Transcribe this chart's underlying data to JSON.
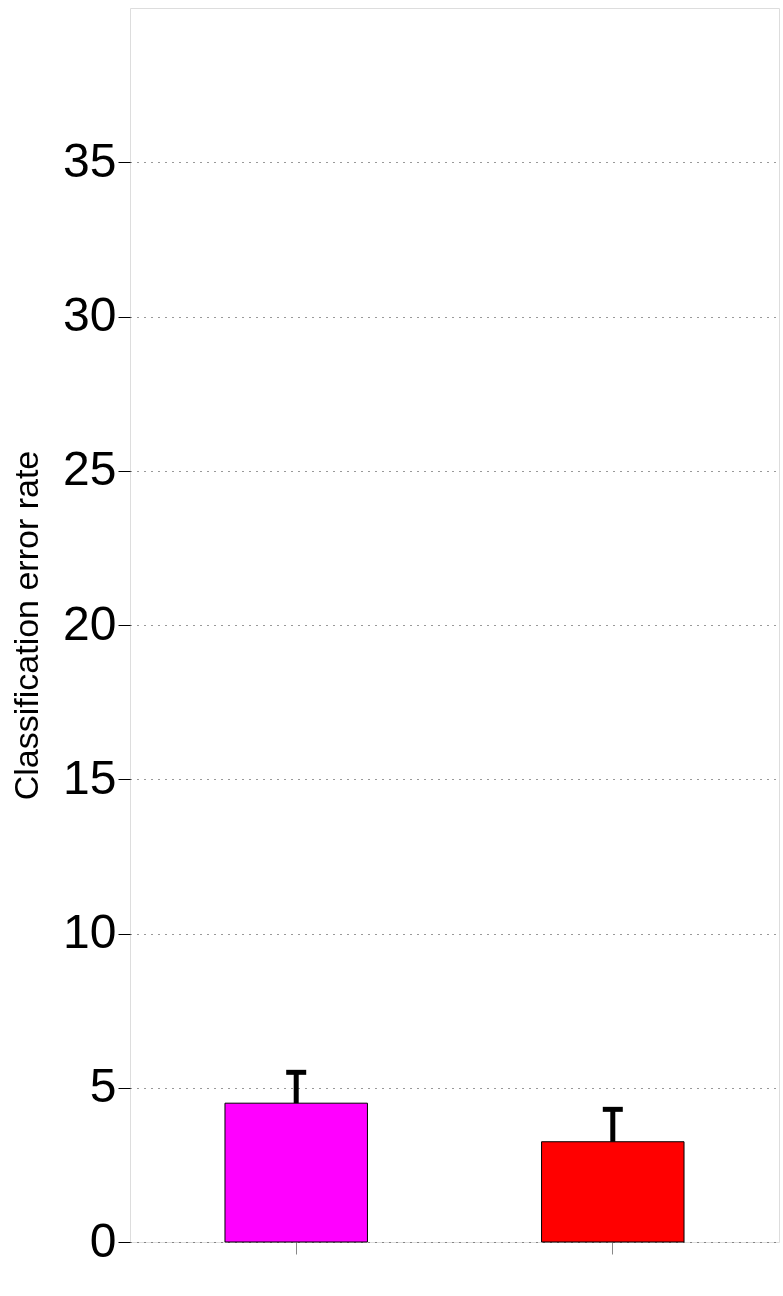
{
  "chart_data": {
    "type": "bar",
    "ylabel": "Classification error rate",
    "categories": [
      null,
      null
    ],
    "values": [
      4.5,
      3.25
    ],
    "colors": [
      "#ff00ff",
      "#ff0000"
    ],
    "errors": [
      [
        4.5,
        5.5
      ],
      [
        3.25,
        4.3
      ]
    ],
    "ylim": [
      0,
      40
    ],
    "yticks": [
      0,
      5,
      10,
      15,
      20,
      25,
      30,
      35
    ],
    "grid": "y",
    "tick_labels": "y"
  }
}
